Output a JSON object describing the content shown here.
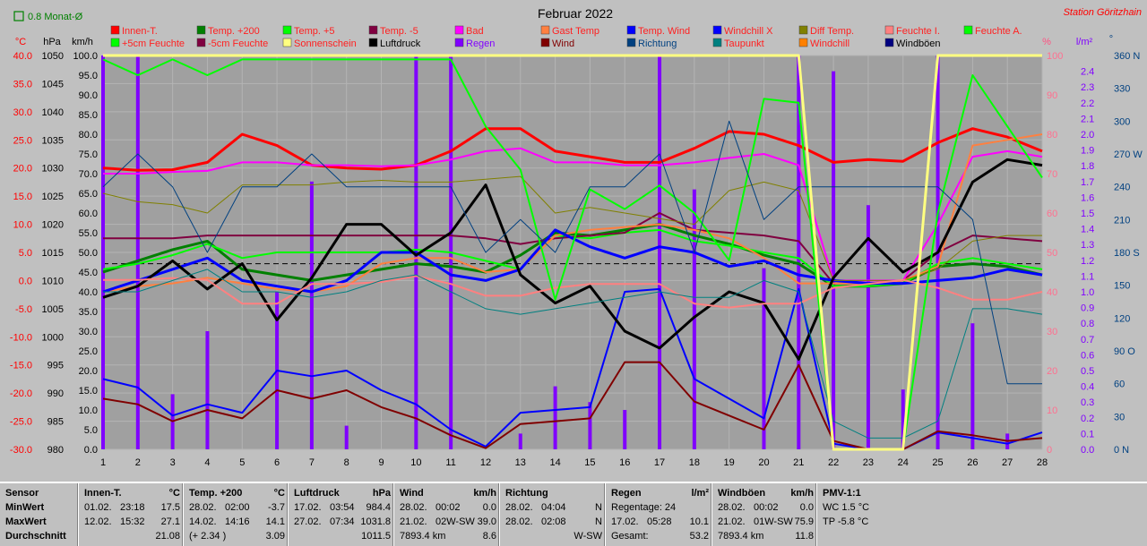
{
  "window": {
    "title": "Februar 2022",
    "station": "Station Göritzhain",
    "period_label": "0.8 Monat-Ø"
  },
  "colors": {
    "background": "#c0c0c0",
    "plot_bg": "#a0a0a0",
    "grid": "#b8b8b8",
    "axis_red": "#ff0000",
    "axis_purple": "#9933ff",
    "axis_blue": "#000080",
    "axis_pink": "#ff6f8f"
  },
  "legend": [
    {
      "label": "Innen-T.",
      "color": "#ff0000"
    },
    {
      "label": "Temp. +200",
      "color": "#008000"
    },
    {
      "label": "Temp. +5",
      "color": "#00ff00"
    },
    {
      "label": "Temp. -5",
      "color": "#800040"
    },
    {
      "label": "Bad",
      "color": "#ff00ff"
    },
    {
      "label": "Gast Temp",
      "color": "#ff8040"
    },
    {
      "label": "Temp. Wind",
      "color": "#0000ff"
    },
    {
      "label": "Windchill X",
      "color": "#0000ff"
    },
    {
      "label": "Diff Temp.",
      "color": "#808000"
    },
    {
      "label": "Feuchte I.",
      "color": "#ff8080"
    },
    {
      "label": "Feuchte A.",
      "color": "#00ff00"
    },
    {
      "label": "+5cm Feuchte",
      "color": "#00ff00"
    },
    {
      "label": "-5cm Feuchte",
      "color": "#800040"
    },
    {
      "label": "Sonnenschein",
      "color": "#ffff80"
    },
    {
      "label": "Luftdruck",
      "color": "#000000"
    },
    {
      "label": "Regen",
      "color": "#8000ff"
    },
    {
      "label": "Wind",
      "color": "#800000"
    },
    {
      "label": "Richtung",
      "color": "#004080"
    },
    {
      "label": "Taupunkt",
      "color": "#008080"
    },
    {
      "label": "Windchill",
      "color": "#ff8000"
    },
    {
      "label": "Windböen",
      "color": "#000080"
    }
  ],
  "chart_data": {
    "type": "line",
    "title": "Februar 2022",
    "x": [
      1,
      2,
      3,
      4,
      5,
      6,
      7,
      8,
      9,
      10,
      11,
      12,
      13,
      14,
      15,
      16,
      17,
      18,
      19,
      20,
      21,
      22,
      23,
      24,
      25,
      26,
      27,
      28
    ],
    "xlim": [
      1,
      28
    ],
    "axes": {
      "temp_c": {
        "unit": "°C",
        "min": -30,
        "max": 40,
        "ticks": [
          "40.0",
          "35.0",
          "30.0",
          "25.0",
          "20.0",
          "15.0",
          "10.0",
          "5.0",
          "0.0",
          "-5.0",
          "-10.0",
          "-15.0",
          "-20.0",
          "-25.0",
          "-30.0"
        ]
      },
      "pressure_hpa": {
        "unit": "hPa",
        "min": 980,
        "max": 1050,
        "ticks": [
          "1050",
          "1045",
          "1040",
          "1035",
          "1030",
          "1025",
          "1020",
          "1015",
          "1010",
          "1005",
          "1000",
          "995",
          "990",
          "985",
          "980"
        ]
      },
      "wind_kmh": {
        "unit": "km/h",
        "min": 0,
        "max": 100,
        "ticks": [
          "100.0",
          "95.0",
          "90.0",
          "85.0",
          "80.0",
          "75.0",
          "70.0",
          "65.0",
          "60.0",
          "55.0",
          "50.0",
          "45.0",
          "40.0",
          "35.0",
          "30.0",
          "25.0",
          "20.0",
          "15.0",
          "10.0",
          "5.0",
          "0.0"
        ]
      },
      "humidity_pct": {
        "unit": "%",
        "min": 0,
        "max": 100,
        "ticks": [
          "100",
          "90",
          "80",
          "70",
          "60",
          "50",
          "40",
          "30",
          "20",
          "10",
          "0"
        ]
      },
      "rain_lm2": {
        "unit": "l/m²",
        "min": 0,
        "max": 2.5,
        "ticks": [
          "2.4",
          "2.3",
          "2.2",
          "2.1",
          "2.0",
          "1.9",
          "1.8",
          "1.7",
          "1.6",
          "1.5",
          "1.4",
          "1.3",
          "1.2",
          "1.1",
          "1.0",
          "0.9",
          "0.8",
          "0.7",
          "0.6",
          "0.5",
          "0.4",
          "0.3",
          "0.2",
          "0.1",
          "0.0"
        ]
      },
      "direction_deg": {
        "unit": "°",
        "min": 0,
        "max": 360,
        "ticks": [
          "360 N",
          "330",
          "300",
          "270 W",
          "240",
          "210",
          "180 S",
          "150",
          "120",
          "90 O",
          "60",
          "30",
          "0 N"
        ]
      }
    },
    "series": [
      {
        "name": "Innen-T.",
        "axis": "temp_c",
        "color": "#ff0000",
        "width": 3,
        "values": [
          20,
          19.6,
          19.7,
          21,
          26,
          24,
          20.5,
          20,
          19.8,
          20.5,
          23,
          27,
          27,
          23,
          22,
          21,
          21,
          23.5,
          26.5,
          26,
          24,
          21,
          21.5,
          21.2,
          24.5,
          27,
          25.5,
          23
        ]
      },
      {
        "name": "Temp. +200",
        "axis": "temp_c",
        "color": "#008000",
        "width": 3,
        "values": [
          1.5,
          3.5,
          5.5,
          7,
          2,
          1,
          0,
          1,
          2,
          3,
          2.5,
          1.5,
          4.5,
          8.5,
          8,
          9,
          10,
          8,
          6.5,
          4.5,
          3,
          -1,
          -1,
          -0.5,
          2.5,
          3,
          2.5,
          1
        ]
      },
      {
        "name": "Temp. +5",
        "axis": "temp_c",
        "color": "#00ff00",
        "width": 2,
        "values": [
          2,
          3,
          4.5,
          6.5,
          4,
          5,
          5,
          5,
          5,
          5.5,
          5,
          3.5,
          2,
          8,
          7.5,
          8.5,
          9,
          7,
          6.2,
          5,
          4,
          -1,
          -1,
          -0.5,
          3,
          4,
          3,
          2
        ]
      },
      {
        "name": "Temp. -5",
        "axis": "temp_c",
        "color": "#800040",
        "width": 2,
        "values": [
          7.5,
          7.5,
          7.5,
          8,
          8,
          8,
          8,
          8,
          8,
          8,
          8,
          7.5,
          6.5,
          7.5,
          8,
          8.5,
          12,
          9,
          8.5,
          8,
          7,
          -0.5,
          -0.5,
          0,
          5,
          8,
          7.5,
          7
        ]
      },
      {
        "name": "Bad",
        "axis": "temp_c",
        "color": "#ff00ff",
        "width": 2,
        "values": [
          19,
          19,
          19.3,
          19.5,
          21,
          21,
          20.5,
          20.5,
          20.3,
          20.5,
          21.5,
          23,
          23.5,
          21,
          21,
          20.5,
          20.5,
          21,
          21.8,
          22.5,
          20.5,
          0,
          0,
          0,
          10,
          22,
          23,
          22
        ]
      },
      {
        "name": "Gast Temp",
        "axis": "temp_c",
        "color": "#ff8040",
        "width": 2,
        "values": [
          -2,
          -1,
          -0.5,
          0.5,
          -0.5,
          -1.5,
          -2,
          -1,
          3,
          4,
          4,
          1.5,
          2,
          8,
          9,
          9.5,
          10,
          9,
          7.5,
          4,
          -0.5,
          -0.5,
          -0.5,
          0,
          2.5,
          24,
          25,
          26
        ]
      },
      {
        "name": "Temp. Wind",
        "axis": "temp_c",
        "color": "#0000ff",
        "width": 3,
        "values": [
          -2,
          0,
          2,
          4,
          0,
          -1,
          -2,
          0,
          5,
          5,
          1,
          0,
          2,
          9,
          6,
          4,
          6,
          5,
          2.5,
          3.5,
          1,
          0,
          -0.5,
          -0.5,
          0,
          0.5,
          2,
          1
        ]
      },
      {
        "name": "Windchill X",
        "axis": "temp_c",
        "color": "#0000ff",
        "width": 2,
        "values": [
          -17.5,
          -19,
          -24,
          -22,
          -23.5,
          -16,
          -17,
          -16,
          -19.5,
          -22,
          -26.5,
          -29.5,
          -23.5,
          -23,
          -22.5,
          -2,
          -1.5,
          -17.5,
          -21,
          -24.5,
          -1.5,
          -29,
          -30,
          -30,
          -27,
          -28,
          -29,
          -27
        ]
      },
      {
        "name": "Wind",
        "axis": "temp_c",
        "color": "#800000",
        "width": 2,
        "values": [
          -21,
          -22,
          -25,
          -23,
          -24.5,
          -19.5,
          -21,
          -19.5,
          -22.5,
          -24.5,
          -27.5,
          -29.8,
          -25.5,
          -25,
          -24.5,
          -14.5,
          -14.5,
          -21.5,
          -24,
          -26.5,
          -15,
          -28.5,
          -30,
          -30,
          -26.8,
          -27.5,
          -28.5,
          -28
        ]
      },
      {
        "name": "Diff Temp.",
        "axis": "temp_c",
        "color": "#808000",
        "width": 1,
        "values": [
          15.5,
          14,
          13.5,
          12,
          17,
          17,
          17,
          17.5,
          17.8,
          17.5,
          17.5,
          18,
          18.5,
          12,
          13,
          12,
          11,
          10,
          16,
          17.5,
          16,
          0,
          0,
          0,
          2,
          7,
          8,
          8
        ]
      },
      {
        "name": "Luftdruck",
        "axis": "pressure_hpa",
        "color": "#000000",
        "width": 3,
        "values": [
          1007,
          1009,
          1013.5,
          1008.5,
          1013,
          1003,
          1010.5,
          1020,
          1020,
          1014.5,
          1018.5,
          1027,
          1011,
          1006,
          1009,
          1001,
          998,
          1003.5,
          1008,
          1006,
          996,
          1010.5,
          1017.5,
          1011.5,
          1015,
          1027.5,
          1031.5,
          1030.5
        ]
      },
      {
        "name": "Feuchte I.",
        "axis": "humidity_pct",
        "color": "#ff8080",
        "width": 2,
        "values": [
          43,
          43,
          43.5,
          43,
          37,
          37,
          42,
          42,
          42.5,
          44,
          42,
          39,
          39,
          41,
          42,
          42,
          42,
          37,
          36,
          37,
          37,
          41,
          42,
          43,
          41,
          38,
          38,
          40
        ]
      },
      {
        "name": "Feuchte A.",
        "axis": "humidity_pct",
        "color": "#00ff00",
        "width": 2,
        "values": [
          99,
          95,
          99,
          95,
          99,
          99,
          99,
          99,
          99,
          99,
          99,
          82,
          71,
          38,
          66,
          61,
          67,
          60,
          48,
          89,
          88,
          0,
          0,
          0,
          60,
          95,
          82,
          69
        ]
      },
      {
        "name": "Taupunkt",
        "axis": "temp_c",
        "color": "#008080",
        "width": 1,
        "values": [
          -2,
          -2,
          0,
          2,
          -2,
          -2,
          -3,
          -2,
          0,
          1,
          -2,
          -5,
          -6,
          -5,
          -4,
          -3,
          -2,
          -3,
          -3,
          0,
          -2,
          -25,
          -28,
          -28,
          -25,
          -5,
          -5,
          -6
        ]
      },
      {
        "name": "Richtung",
        "axis": "direction_deg",
        "color": "#004080",
        "width": 1,
        "values": [
          240,
          270,
          240,
          180,
          240,
          240,
          270,
          240,
          240,
          240,
          240,
          180,
          210,
          180,
          240,
          240,
          270,
          180,
          300,
          210,
          240,
          240,
          240,
          240,
          240,
          210,
          60,
          60
        ]
      },
      {
        "name": "Sonnenschein",
        "axis": "humidity_pct",
        "color": "#ffff80",
        "width": 3,
        "values": [
          100,
          100,
          100,
          100,
          100,
          100,
          100,
          100,
          100,
          100,
          100,
          100,
          100,
          100,
          100,
          100,
          100,
          100,
          100,
          100,
          100,
          0,
          0,
          0,
          100,
          100,
          100,
          100
        ]
      }
    ],
    "bars": {
      "name": "Regen",
      "axis": "rain_lm2",
      "color": "#8000ff",
      "values": [
        2.5,
        2.5,
        0.35,
        0.75,
        0,
        1.0,
        1.7,
        0.15,
        0,
        2.5,
        2.5,
        0,
        0.1,
        0.4,
        0.3,
        0.25,
        2.5,
        1.65,
        0,
        1.15,
        2.5,
        2.4,
        1.55,
        0.38,
        2.5,
        0.8,
        0.1,
        0
      ]
    },
    "reference_line": {
      "axis": "pressure_hpa",
      "value": 1013.0,
      "style": "dashed"
    }
  },
  "stats": [
    {
      "header": "Sensor",
      "unit": "",
      "rows": [
        "MinWert",
        "MaxWert",
        "Durchschnitt"
      ]
    },
    {
      "header": "Innen-T.",
      "unit": "°C",
      "rows": [
        {
          "a": "01.02.",
          "b": "23:18",
          "v": "17.5"
        },
        {
          "a": "12.02.",
          "b": "15:32",
          "v": "27.1"
        },
        {
          "a": "",
          "b": "",
          "v": "21.08"
        }
      ]
    },
    {
      "header": "Temp. +200",
      "unit": "°C",
      "rows": [
        {
          "a": "28.02.",
          "b": "02:00",
          "v": "-3.7"
        },
        {
          "a": "14.02.",
          "b": "14:16",
          "v": "14.1"
        },
        {
          "a": "(+ 2.34 )",
          "b": "",
          "v": "3.09"
        }
      ]
    },
    {
      "header": "Luftdruck",
      "unit": "hPa",
      "rows": [
        {
          "a": "17.02.",
          "b": "03:54",
          "v": "984.4"
        },
        {
          "a": "27.02.",
          "b": "07:34",
          "v": "1031.8"
        },
        {
          "a": "",
          "b": "",
          "v": "1011.5"
        }
      ]
    },
    {
      "header": "Wind",
      "unit": "km/h",
      "rows": [
        {
          "a": "28.02.",
          "b": "00:02",
          "v": "0.0"
        },
        {
          "a": "21.02.",
          "b": "02W-SW",
          "v": "39.0"
        },
        {
          "a": "7893.4 km",
          "b": "",
          "v": "8.6"
        }
      ]
    },
    {
      "header": "Richtung",
      "unit": "",
      "rows": [
        {
          "a": "28.02.",
          "b": "04:04",
          "v": "N"
        },
        {
          "a": "28.02.",
          "b": "02:08",
          "v": "N"
        },
        {
          "a": "",
          "b": "",
          "v": "W-SW"
        }
      ]
    },
    {
      "header": "Regen",
      "unit": "l/m²",
      "rows": [
        {
          "a": "Regentage: 24",
          "b": "",
          "v": ""
        },
        {
          "a": "17.02.",
          "b": "05:28",
          "v": "10.1"
        },
        {
          "a": "Gesamt:",
          "b": "",
          "v": "53.2"
        }
      ]
    },
    {
      "header": "Windböen",
      "unit": "km/h",
      "rows": [
        {
          "a": "28.02.",
          "b": "00:02",
          "v": "0.0"
        },
        {
          "a": "21.02.",
          "b": "01W-SW",
          "v": "75.9"
        },
        {
          "a": "7893.4 km",
          "b": "",
          "v": "11.8"
        }
      ]
    },
    {
      "header": "PMV-1:1",
      "unit": "",
      "rows": [
        {
          "a": "WC 1.5 °C",
          "b": "",
          "v": ""
        },
        {
          "a": "TP -5.8 °C",
          "b": "",
          "v": ""
        },
        {
          "a": "",
          "b": "",
          "v": ""
        }
      ]
    }
  ]
}
